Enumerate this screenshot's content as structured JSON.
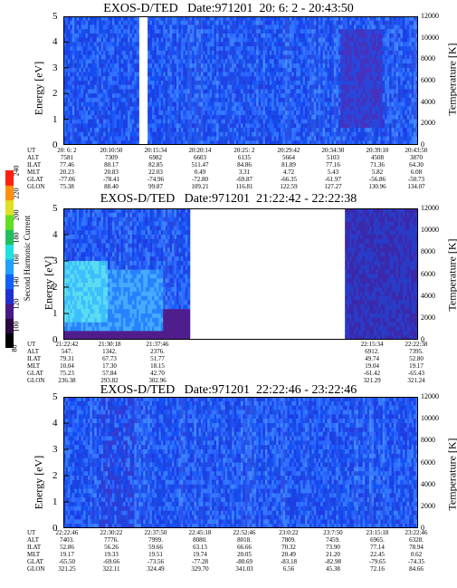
{
  "chart_data": [
    {
      "type": "heatmap",
      "title": "EXOS-D/TED   Date:971201  20: 6: 2 - 20:43:50",
      "ylabel": "Energy [eV]",
      "y2label": "Temperature [K]",
      "ylim": [
        0,
        5
      ],
      "y2lim": [
        0,
        12000
      ],
      "yticks": [
        "0",
        "1",
        "2",
        "3",
        "4",
        "5"
      ],
      "y2ticks": [
        "0",
        "2000",
        "4000",
        "6000",
        "8000",
        "10000",
        "12000"
      ],
      "gaps": [
        [
          0.21,
          0.235
        ]
      ],
      "orbit_labels": [
        "UT",
        "ALT",
        "ILAT",
        "MLT",
        "GLAT",
        "GLON"
      ],
      "orbit_columns": [
        [
          "20: 6: 2",
          "7581",
          "77.46",
          "20.23",
          "-77.06",
          "75.38"
        ],
        [
          "20:10:50",
          "7309",
          "80.17",
          "20.83",
          "-78.41",
          "88.40"
        ],
        [
          "20:15:34",
          "6982",
          "82.85",
          "22.03",
          "-74.96",
          "99.87"
        ],
        [
          "20:20:14",
          "6603",
          "511.47",
          "0.49",
          "-72.80",
          "109.21"
        ],
        [
          "20:25: 2",
          "6135",
          "84.86",
          "3.31",
          "-69.87",
          "116.81"
        ],
        [
          "20:29:42",
          "5664",
          "81.89",
          "4.72",
          "-66.35",
          "122.59"
        ],
        [
          "20:34:30",
          "5103",
          "77.16",
          "5.43",
          "-61.97",
          "127.27"
        ],
        [
          "20:39:10",
          "4508",
          "71.36",
          "5.82",
          "-56.86",
          "130.96"
        ],
        [
          "20:43:50",
          "3870",
          "64.30",
          "6.08",
          "-50.73",
          "134.07"
        ]
      ]
    },
    {
      "type": "heatmap",
      "title": "EXOS-D/TED   Date:971201  21:22:42 - 22:22:38",
      "ylabel": "Energy [eV]",
      "y2label": "Temperature [K]",
      "colorbar_label": "Second Harmonic Current",
      "colorbar_ticks": [
        "80",
        "100",
        "120",
        "140",
        "160",
        "180",
        "200",
        "220",
        "240"
      ],
      "ylim": [
        0,
        5
      ],
      "y2lim": [
        0,
        12000
      ],
      "yticks": [
        "0",
        "1",
        "2",
        "3",
        "4",
        "5"
      ],
      "y2ticks": [
        "0",
        "2000",
        "4000",
        "6000",
        "8000",
        "10000",
        "12000"
      ],
      "gaps": [
        [
          0.355,
          0.79
        ]
      ],
      "orbit_labels": [
        "UT",
        "ALT",
        "ILAT",
        "MLT",
        "GLAT",
        "GLON"
      ],
      "orbit_columns": [
        [
          "21:22:42",
          "547.",
          "79.31",
          "10.04",
          "75.23",
          "236.38"
        ],
        [
          "21:30:18",
          "1342.",
          "67.73",
          "17.30",
          "57.84",
          "293.82"
        ],
        [
          "21:37:46",
          "2376.",
          "51.77",
          "18.15",
          "42.70",
          "302.96"
        ],
        [
          "22:15:34",
          "6912.",
          "49.74",
          "19.04",
          "-61.42",
          "321.29"
        ],
        [
          "22:22:38",
          "7395.",
          "52.80",
          "19.17",
          "-65.43",
          "321.24"
        ]
      ]
    },
    {
      "type": "heatmap",
      "title": "EXOS-D/TED   Date:971201  22:22:46 - 23:22:46",
      "ylabel": "Energy [eV]",
      "y2label": "Temperature [K]",
      "ylim": [
        0,
        5
      ],
      "y2lim": [
        0,
        12000
      ],
      "yticks": [
        "0",
        "1",
        "2",
        "3",
        "4",
        "5"
      ],
      "y2ticks": [
        "0",
        "2000",
        "4000",
        "6000",
        "8000",
        "10000",
        "12000"
      ],
      "gaps": [],
      "orbit_labels": [
        "UT",
        "ALT",
        "ILAT",
        "MLT",
        "GLAT",
        "GLON"
      ],
      "orbit_columns": [
        [
          "22:22:46",
          "7403.",
          "52.86",
          "19.17",
          "-65.50",
          "321.25"
        ],
        [
          "22:30:22",
          "7776.",
          "56.26",
          "19.33",
          "-69.66",
          "322.11"
        ],
        [
          "22:37:50",
          "7999.",
          "59.66",
          "19.51",
          "-73.56",
          "324.49"
        ],
        [
          "22:45:18",
          "8080.",
          "63.13",
          "19.74",
          "-77.28",
          "329.70"
        ],
        [
          "22:52:46",
          "8018.",
          "66.66",
          "20.05",
          "-80.69",
          "341.03"
        ],
        [
          "23:0:22",
          "7809.",
          "70.32",
          "20.49",
          "-83.18",
          "6.56"
        ],
        [
          "23:7:50",
          "7459.",
          "73.90",
          "21.20",
          "-82.98",
          "45.38"
        ],
        [
          "23:15:18",
          "6965.",
          "77.14",
          "22.45",
          "-79.65",
          "72.16"
        ],
        [
          "23:22:46",
          "6328.",
          "78.94",
          "0.62",
          "-74.35",
          "84.66"
        ]
      ]
    }
  ]
}
